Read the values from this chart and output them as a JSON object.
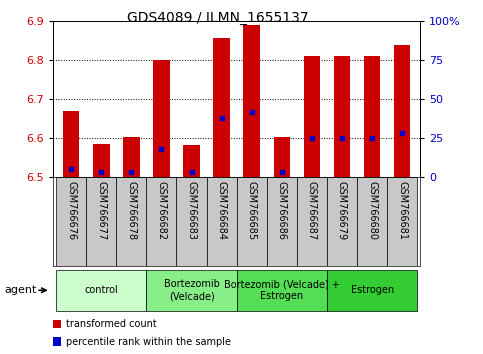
{
  "title": "GDS4089 / ILMN_1655137",
  "samples": [
    "GSM766676",
    "GSM766677",
    "GSM766678",
    "GSM766682",
    "GSM766683",
    "GSM766684",
    "GSM766685",
    "GSM766686",
    "GSM766687",
    "GSM766679",
    "GSM766680",
    "GSM766681"
  ],
  "transformed_count": [
    6.67,
    6.585,
    6.602,
    6.8,
    6.582,
    6.856,
    6.89,
    6.603,
    6.81,
    6.81,
    6.81,
    6.84
  ],
  "percentile_rank": [
    5,
    3,
    3,
    18,
    3,
    38,
    42,
    3,
    25,
    25,
    25,
    28
  ],
  "ylim_left": [
    6.5,
    6.9
  ],
  "ylim_right": [
    0,
    100
  ],
  "yticks_left": [
    6.5,
    6.6,
    6.7,
    6.8,
    6.9
  ],
  "yticks_right": [
    0,
    25,
    50,
    75,
    100
  ],
  "ytick_labels_right": [
    "0",
    "25",
    "50",
    "75",
    "100%"
  ],
  "bar_color": "#cc0000",
  "dot_color": "#0000cc",
  "bar_width": 0.55,
  "groups": [
    {
      "label": "control",
      "start": 0,
      "end": 3,
      "color": "#ccffcc"
    },
    {
      "label": "Bortezomib\n(Velcade)",
      "start": 3,
      "end": 6,
      "color": "#88ee88"
    },
    {
      "label": "Bortezomib (Velcade) +\nEstrogen",
      "start": 6,
      "end": 9,
      "color": "#55dd55"
    },
    {
      "label": "Estrogen",
      "start": 9,
      "end": 12,
      "color": "#33cc33"
    }
  ],
  "agent_label": "agent",
  "legend_items": [
    {
      "color": "#cc0000",
      "label": "transformed count"
    },
    {
      "color": "#0000cc",
      "label": "percentile rank within the sample"
    }
  ],
  "tick_label_color_left": "#cc0000",
  "tick_label_color_right": "#0000cc",
  "baseline": 6.5,
  "cell_color": "#c8c8c8",
  "title_fontsize": 10,
  "tick_fontsize": 8,
  "label_fontsize": 7
}
